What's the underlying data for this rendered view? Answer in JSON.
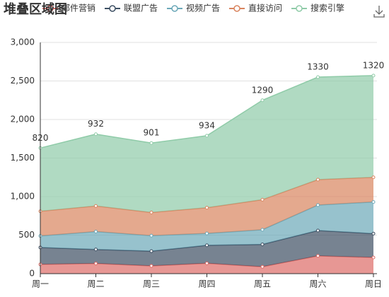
{
  "chart_data": {
    "type": "stacked-area",
    "title": "堆叠区域图",
    "categories": [
      "周一",
      "周二",
      "周三",
      "周四",
      "周五",
      "周六",
      "周日"
    ],
    "series": [
      {
        "name": "邮件营销",
        "color": "#dd6b66",
        "values": [
          120,
          132,
          101,
          134,
          90,
          230,
          210
        ]
      },
      {
        "name": "联盟广告",
        "color": "#3d4f63",
        "values": [
          220,
          182,
          191,
          234,
          290,
          330,
          310
        ]
      },
      {
        "name": "视频广告",
        "color": "#6ba8b8",
        "values": [
          150,
          232,
          201,
          154,
          190,
          330,
          410
        ]
      },
      {
        "name": "直接访问",
        "color": "#d9845e",
        "values": [
          320,
          332,
          301,
          334,
          390,
          330,
          320
        ]
      },
      {
        "name": "搜索引擎",
        "color": "#8fcba8",
        "values": [
          820,
          932,
          901,
          934,
          1290,
          1330,
          1320
        ],
        "labels": true
      }
    ],
    "ylim": [
      0,
      3000
    ],
    "yticks": [
      0,
      500,
      {
        "value": 1000,
        "label": "1,000"
      },
      {
        "value": 1500,
        "label": "1,500"
      },
      {
        "value": 2000,
        "label": "2,000"
      },
      {
        "value": 2500,
        "label": "2,500"
      },
      {
        "value": 3000,
        "label": "3,000"
      }
    ],
    "grid": true
  }
}
